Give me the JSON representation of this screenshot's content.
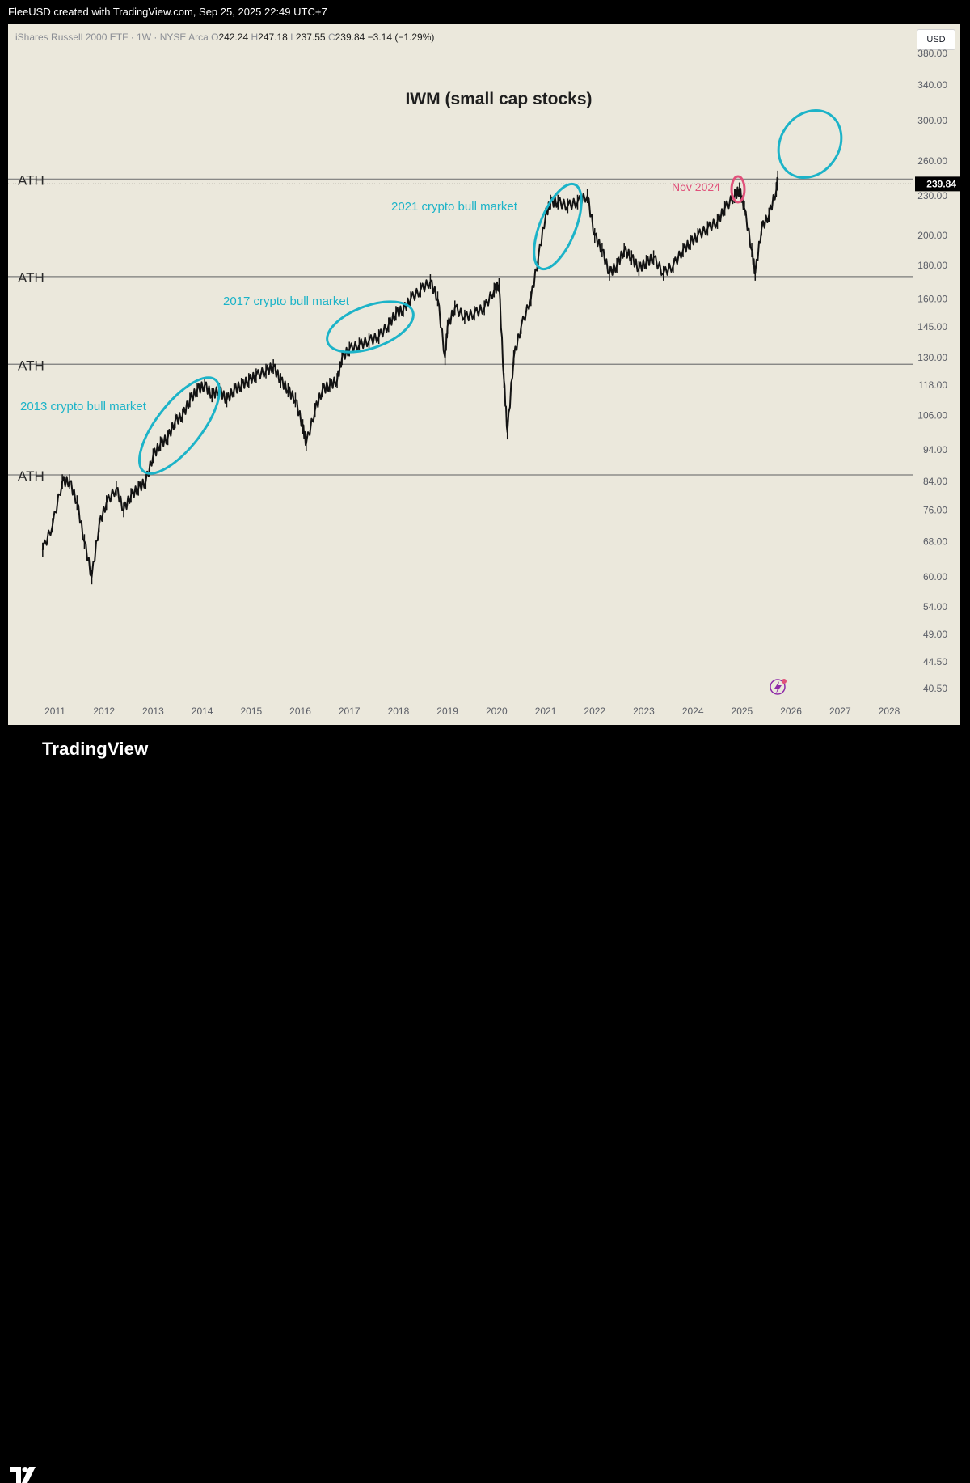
{
  "header": {
    "attribution": "FleeUSD created with TradingView.com, Sep 25, 2025 22:49 UTC+7"
  },
  "legend": {
    "symbol": "iShares Russell 2000 ETF · 1W · NYSE Arca",
    "open_key": "O",
    "open": "242.24",
    "high_key": "H",
    "high": "247.18",
    "low_key": "L",
    "low": "237.55",
    "close_key": "C",
    "close": "239.84",
    "change": "−3.14 (−1.29%)"
  },
  "currency_button": "USD",
  "footer": {
    "brand": "TradingView"
  },
  "colors": {
    "background": "#ebe8dc",
    "candles": "#131313",
    "annotation": "#1cb3c8",
    "nov_annotation": "#e0517a",
    "ath_line": "#7a7a7a",
    "price_label_bg": "#000000"
  },
  "chart_data": {
    "type": "line",
    "title": "IWM (small cap stocks)",
    "xlabel": "",
    "ylabel": "",
    "y_scale": "log",
    "xlim": [
      2010.7,
      2028.4
    ],
    "ylim": [
      38,
      400
    ],
    "x_ticks": [
      "2011",
      "2012",
      "2013",
      "2014",
      "2015",
      "2016",
      "2017",
      "2018",
      "2019",
      "2020",
      "2021",
      "2022",
      "2023",
      "2024",
      "2025",
      "2026",
      "2027",
      "2028"
    ],
    "y_ticks": [
      "40.50",
      "44.50",
      "49.00",
      "54.00",
      "60.00",
      "68.00",
      "76.00",
      "84.00",
      "94.00",
      "106.00",
      "118.00",
      "130.00",
      "145.00",
      "160.00",
      "180.00",
      "200.00",
      "230.00",
      "260.00",
      "300.00",
      "340.00",
      "380.00"
    ],
    "grid": false,
    "last_price": "239.84",
    "series": [
      {
        "x": [
          2010.75,
          2010.95,
          2011.15,
          2011.3,
          2011.45,
          2011.6,
          2011.75,
          2011.9,
          2012.05,
          2012.25,
          2012.4,
          2012.55,
          2012.7,
          2012.85,
          2013.0,
          2013.15,
          2013.3,
          2013.45,
          2013.6,
          2013.75,
          2013.9,
          2014.05,
          2014.2,
          2014.35,
          2014.5,
          2014.65,
          2014.8,
          2014.95,
          2015.1,
          2015.3,
          2015.45,
          2015.6,
          2015.75,
          2015.9,
          2016.05,
          2016.12,
          2016.3,
          2016.45,
          2016.6,
          2016.75,
          2016.85,
          2017.0,
          2017.2,
          2017.4,
          2017.6,
          2017.8,
          2017.95,
          2018.1,
          2018.25,
          2018.45,
          2018.65,
          2018.8,
          2018.95,
          2019.0,
          2019.15,
          2019.35,
          2019.55,
          2019.75,
          2019.95,
          2020.05,
          2020.15,
          2020.22,
          2020.35,
          2020.5,
          2020.7,
          2020.85,
          2021.0,
          2021.1,
          2021.25,
          2021.45,
          2021.65,
          2021.85,
          2022.0,
          2022.15,
          2022.3,
          2022.45,
          2022.6,
          2022.75,
          2022.9,
          2023.05,
          2023.2,
          2023.4,
          2023.6,
          2023.8,
          2023.95,
          2024.1,
          2024.3,
          2024.5,
          2024.65,
          2024.85,
          2024.95,
          2025.05,
          2025.2,
          2025.27,
          2025.4,
          2025.55,
          2025.7,
          2025.73
        ],
        "y": [
          66,
          72,
          84,
          84,
          78,
          68,
          60,
          72,
          78,
          82,
          76,
          80,
          82,
          84,
          92,
          96,
          98,
          104,
          106,
          112,
          116,
          118,
          114,
          116,
          112,
          116,
          118,
          120,
          122,
          124,
          126,
          120,
          116,
          112,
          102,
          96,
          108,
          116,
          118,
          120,
          130,
          134,
          136,
          138,
          140,
          146,
          152,
          154,
          160,
          165,
          170,
          160,
          130,
          145,
          155,
          150,
          152,
          155,
          165,
          168,
          120,
          100,
          130,
          145,
          160,
          185,
          215,
          225,
          225,
          222,
          225,
          230,
          200,
          190,
          175,
          180,
          190,
          185,
          178,
          182,
          185,
          175,
          180,
          190,
          195,
          200,
          205,
          210,
          220,
          230,
          235,
          220,
          190,
          175,
          205,
          215,
          235,
          245
        ]
      }
    ],
    "horizontal_lines": [
      {
        "label": "ATH",
        "value": 244
      },
      {
        "label": "ATH",
        "value": 173
      },
      {
        "label": "ATH",
        "value": 127
      },
      {
        "label": "ATH",
        "value": 86
      }
    ],
    "annotations": [
      {
        "text": "2013 crypto bull market"
      },
      {
        "text": "2017 crypto bull market"
      },
      {
        "text": "2021 crypto bull market"
      },
      {
        "text": "Nov 2024"
      }
    ]
  }
}
